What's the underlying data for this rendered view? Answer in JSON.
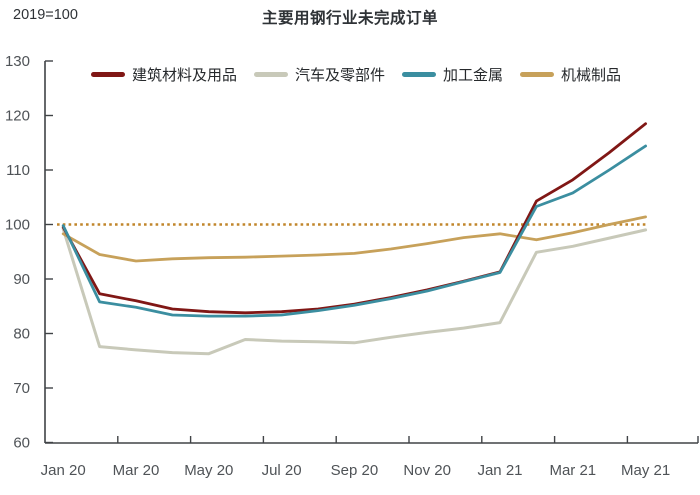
{
  "header": {
    "unit_label": "2019=100",
    "title": "主要用钢行业未完成订单"
  },
  "chart_data": {
    "type": "line",
    "title": "主要用钢行业未完成订单",
    "index_note": "2019=100",
    "x_axis": {
      "tick_labels": [
        "Jan 20",
        "Mar 20",
        "May 20",
        "Jul 20",
        "Sep 20",
        "Nov 20",
        "Jan 21",
        "Mar 21",
        "May 21"
      ],
      "label_every_n_points": 2,
      "points_per_series": 17
    },
    "y_axis": {
      "ticks": [
        60,
        70,
        80,
        90,
        100,
        110,
        120,
        130
      ],
      "range": [
        60,
        130
      ]
    },
    "grid": "off",
    "legend_position": "top",
    "reference_line": {
      "value": 100,
      "style": "dotted",
      "color": "#c1862b"
    },
    "axis_color": "#404346",
    "series": [
      {
        "name": "建筑材料及用品",
        "color": "#801715",
        "values": [
          99.5,
          87.3,
          86.0,
          84.5,
          84.0,
          83.8,
          84.0,
          84.5,
          85.4,
          86.6,
          88.0,
          89.6,
          91.3,
          104.3,
          108.2,
          113.2,
          118.5
        ]
      },
      {
        "name": "汽车及零部件",
        "color": "#c8c9b9",
        "values": [
          99.2,
          77.6,
          77.0,
          76.5,
          76.3,
          78.9,
          78.6,
          78.5,
          78.3,
          79.3,
          80.2,
          81.0,
          82.0,
          94.9,
          96.0,
          97.5,
          99.0
        ]
      },
      {
        "name": "加工金属",
        "color": "#3b8ea0",
        "values": [
          99.8,
          85.8,
          84.8,
          83.4,
          83.2,
          83.2,
          83.4,
          84.2,
          85.2,
          86.4,
          87.8,
          89.5,
          91.2,
          103.3,
          105.8,
          110.0,
          114.4
        ]
      },
      {
        "name": "机械制品",
        "color": "#c7a15a",
        "values": [
          98.3,
          94.5,
          93.3,
          93.7,
          93.9,
          94.0,
          94.2,
          94.4,
          94.7,
          95.5,
          96.5,
          97.6,
          98.3,
          97.2,
          98.5,
          100.0,
          101.4
        ]
      }
    ]
  }
}
